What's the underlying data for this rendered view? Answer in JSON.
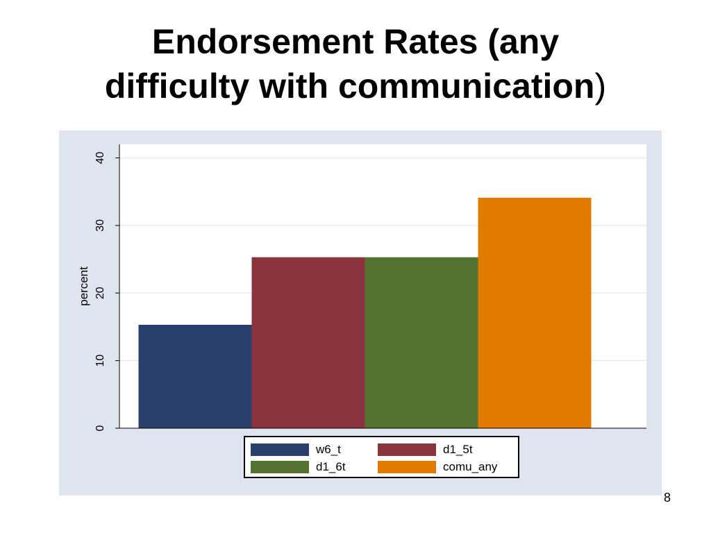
{
  "slide": {
    "title_line1": "Endorsement Rates (any",
    "title_line2_main": "difficulty with communication",
    "title_line2_paren": ")",
    "page_number": "8"
  },
  "chart_data": {
    "type": "bar",
    "ylabel": "percent",
    "ylim": [
      0,
      42
    ],
    "yticks": [
      0,
      10,
      20,
      30,
      40
    ],
    "grid": true,
    "legend_position": "bottom",
    "series": [
      {
        "name": "w6_t",
        "value": 15.3,
        "color": "#283f6b"
      },
      {
        "name": "d1_5t",
        "value": 25.3,
        "color": "#8b343d"
      },
      {
        "name": "d1_6t",
        "value": 25.3,
        "color": "#547330"
      },
      {
        "name": "comu_any",
        "value": 34.1,
        "color": "#e07b00"
      }
    ],
    "colors": {
      "panel_background": "#dfe4ee",
      "plot_background": "#ffffff",
      "grid": "#e6eaf2"
    }
  }
}
